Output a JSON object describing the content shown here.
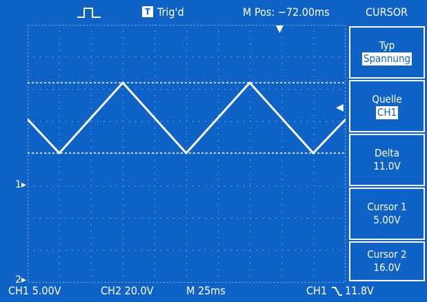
{
  "status": {
    "trigger_type_icon": "pulse-trigger-icon",
    "trig_state_badge": "T",
    "trig_state": "Trig'd",
    "m_pos": "M Pos: −72.00ms"
  },
  "menu": {
    "title": "CURSOR",
    "items": [
      {
        "label": "Typ",
        "value": "Spannung",
        "highlight": true
      },
      {
        "label": "Quelle",
        "value": "CH1",
        "highlight": true
      },
      {
        "label": "Delta",
        "value": "11.0V",
        "highlight": false
      },
      {
        "label": "Cursor 1",
        "value": "5.00V",
        "highlight": false
      },
      {
        "label": "Cursor 2",
        "value": "16.0V",
        "highlight": false
      }
    ]
  },
  "bottom": {
    "ch1": "CH1 5.00V",
    "ch2": "CH2 20.0V",
    "timebase": "M 25ms",
    "trigger_source": "CH1",
    "trigger_slope_icon": "falling-edge-icon",
    "trigger_level": "11.8V"
  },
  "markers": {
    "ch1_ground": "1",
    "ch2_ground": "2"
  },
  "colors": {
    "background": "#0f63c6",
    "trace": "#ffffff",
    "grid": "#8fb4e6"
  }
}
